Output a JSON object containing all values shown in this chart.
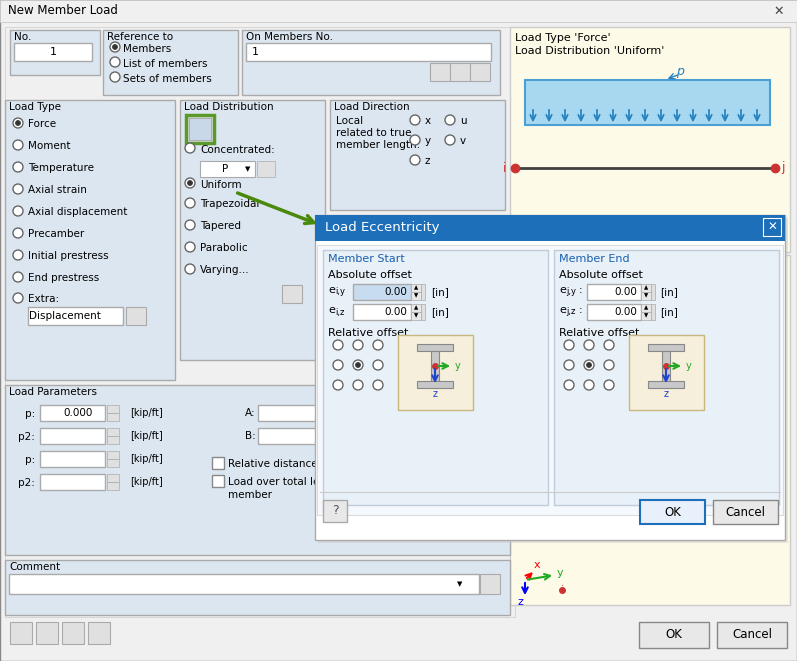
{
  "bg_color": "#f0f0f0",
  "window_title": "New Member Load",
  "window_bg": "#f0f0f0",
  "dialog_title": "Load Eccentricity",
  "dialog_bg": "#ffffff",
  "dialog_header_bg": "#1e6fba",
  "preview_bg": "#fefae8",
  "section_bg": "#dce6f0",
  "input_bg": "#ffffff",
  "input_highlight": "#c8dcf0",
  "button_bg": "#f0f0f0",
  "ok_button_border": "#1e6fba",
  "load_type_options": [
    "Force",
    "Moment",
    "Temperature",
    "Axial strain",
    "Axial displacement",
    "Precamber",
    "Initial prestress",
    "End prestress",
    "Extra:"
  ],
  "load_dist_options": [
    "Concentrated:",
    "Uniform",
    "Trapezoidal",
    "Tapered",
    "Parabolic",
    "Varying..."
  ],
  "load_dir_options": [
    "x",
    "y",
    "z",
    "u",
    "v"
  ],
  "ref_options": [
    "Members",
    "List of members",
    "Sets of members"
  ]
}
